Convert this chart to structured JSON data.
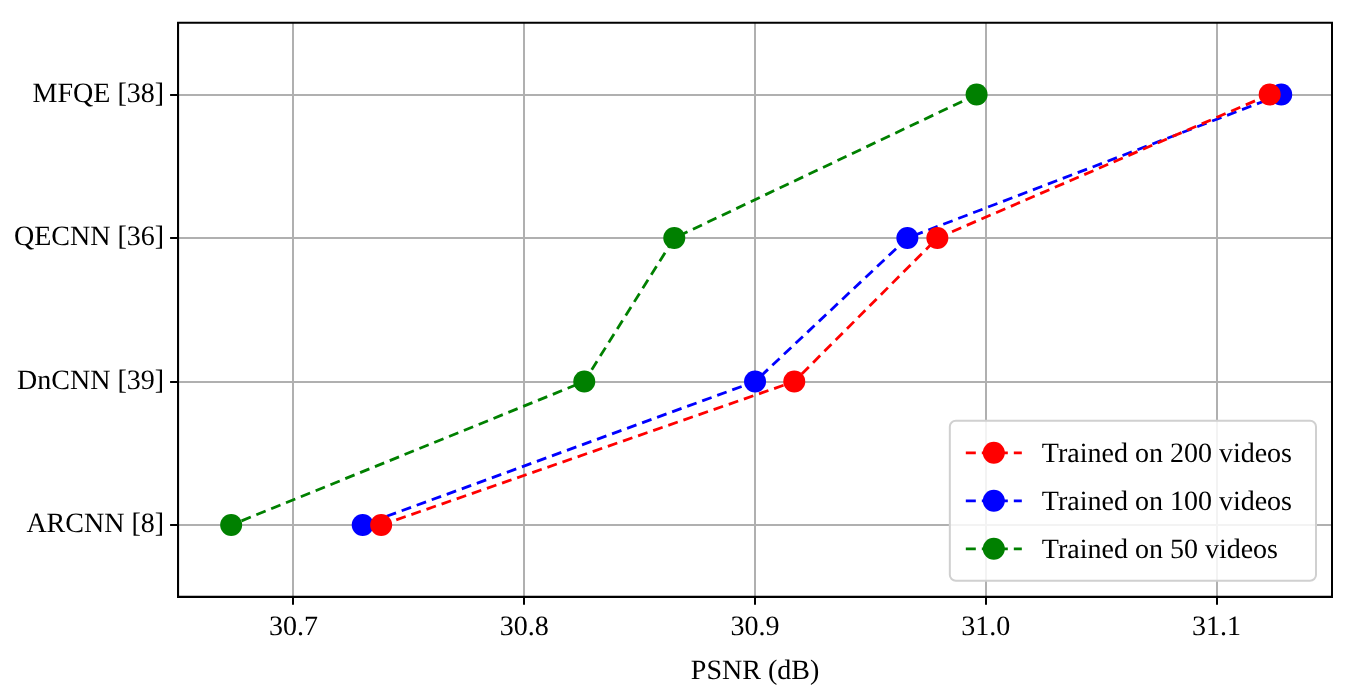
{
  "chart_data": {
    "type": "line",
    "orientation": "horizontal",
    "xlabel": "PSNR (dB)",
    "categories": [
      "MFQE [38]",
      "QECNN [36]",
      "DnCNN [39]",
      "ARCNN [8]"
    ],
    "xlim": [
      30.65,
      31.15
    ],
    "xticks": [
      30.7,
      30.8,
      30.9,
      {
        "value": 31,
        "label": "31.0"
      },
      31.1
    ],
    "grid": true,
    "legend": "bottom right",
    "marker": "circle",
    "line_style": "dashed",
    "series": [
      {
        "name": "Trained on 200 videos",
        "color": "#ff0000",
        "values": [
          31.123,
          30.979,
          30.917,
          30.738
        ]
      },
      {
        "name": "Trained on 100 videos",
        "color": "#0000ff",
        "values": [
          31.128,
          30.966,
          30.9,
          30.73
        ]
      },
      {
        "name": "Trained on 50 videos",
        "color": "#008000",
        "values": [
          30.996,
          30.865,
          30.826,
          30.673
        ]
      }
    ]
  }
}
